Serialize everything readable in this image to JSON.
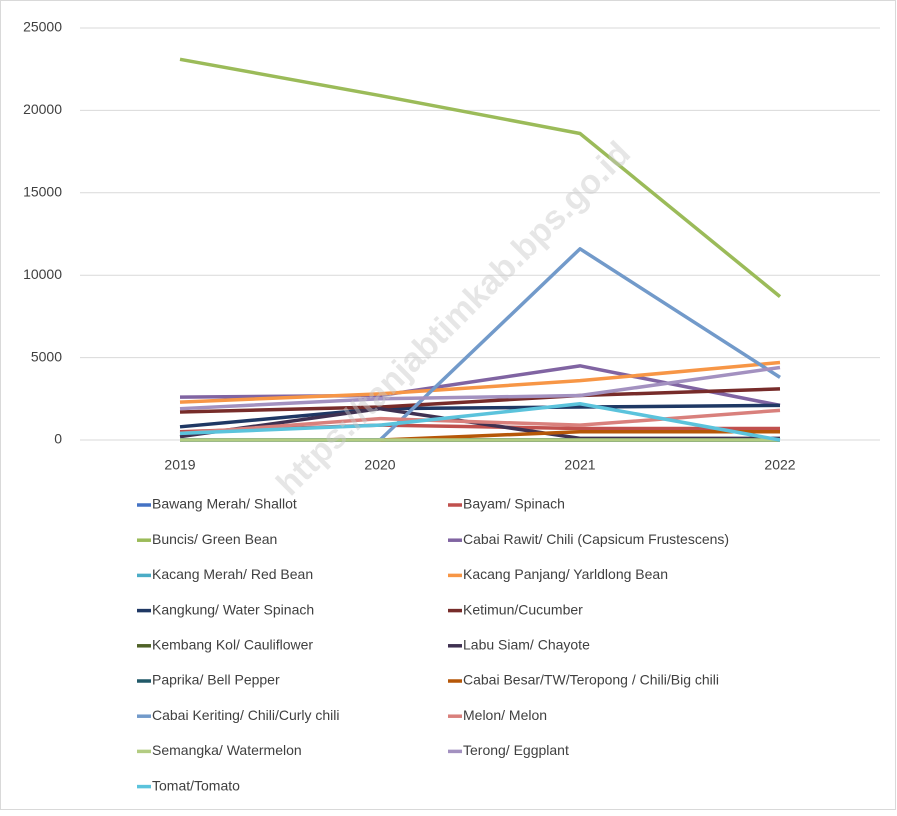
{
  "chart_data": {
    "type": "line",
    "watermark": "https://tanjabtimkab.bps.go.id",
    "categories": [
      "2019",
      "2020",
      "2021",
      "2022"
    ],
    "ylim": [
      0,
      25000
    ],
    "yticks": [
      0,
      5000,
      10000,
      15000,
      20000,
      25000
    ],
    "grid": true,
    "series": [
      {
        "name": "Bawang Merah/ Shallot",
        "color": "#4472c4",
        "values": [
          0,
          0,
          0,
          0
        ]
      },
      {
        "name": "Bayam/ Spinach",
        "color": "#c0504d",
        "values": [
          500,
          900,
          700,
          700
        ]
      },
      {
        "name": "Buncis/ Green Bean",
        "color": "#9bbb59",
        "values": [
          23100,
          20900,
          18600,
          8700
        ]
      },
      {
        "name": "Cabai Rawit/ Chili (Capsicum Frustescens)",
        "color": "#8064a2",
        "values": [
          2600,
          2700,
          4500,
          2100
        ]
      },
      {
        "name": "Kacang Merah/ Red Bean",
        "color": "#4bacc6",
        "values": [
          0,
          0,
          0,
          0
        ]
      },
      {
        "name": "Kacang Panjang/ Yarldlong Bean",
        "color": "#f79646",
        "values": [
          2300,
          2800,
          3600,
          4700
        ]
      },
      {
        "name": "Kangkung/ Water Spinach",
        "color": "#1f3864",
        "values": [
          800,
          1900,
          2000,
          2100
        ]
      },
      {
        "name": "Ketimun/Cucumber",
        "color": "#772c2a",
        "values": [
          1700,
          2000,
          2700,
          3100
        ]
      },
      {
        "name": "Kembang Kol/ Cauliflower",
        "color": "#4f6228",
        "values": [
          0,
          0,
          0,
          0
        ]
      },
      {
        "name": "Labu Siam/ Chayote",
        "color": "#3f3151",
        "values": [
          200,
          1900,
          100,
          100
        ]
      },
      {
        "name": "Paprika/ Bell Pepper",
        "color": "#215968",
        "values": [
          0,
          0,
          0,
          0
        ]
      },
      {
        "name": "Cabai Besar/TW/Teropong / Chili/Big chili",
        "color": "#b65708",
        "values": [
          null,
          0,
          500,
          500
        ]
      },
      {
        "name": "Cabai Keriting/ Chili/Curly chili",
        "color": "#729aca",
        "values": [
          0,
          0,
          11600,
          3800
        ]
      },
      {
        "name": "Melon/ Melon",
        "color": "#d9807c",
        "values": [
          400,
          1300,
          900,
          1800
        ]
      },
      {
        "name": "Semangka/ Watermelon",
        "color": "#b3cc82",
        "values": [
          0,
          0,
          0,
          0
        ]
      },
      {
        "name": "Terong/ Eggplant",
        "color": "#a391c0",
        "values": [
          1900,
          2500,
          2700,
          4400
        ]
      },
      {
        "name": "Tomat/Tomato",
        "color": "#5bc3dc",
        "values": [
          400,
          900,
          2200,
          0
        ]
      }
    ]
  }
}
